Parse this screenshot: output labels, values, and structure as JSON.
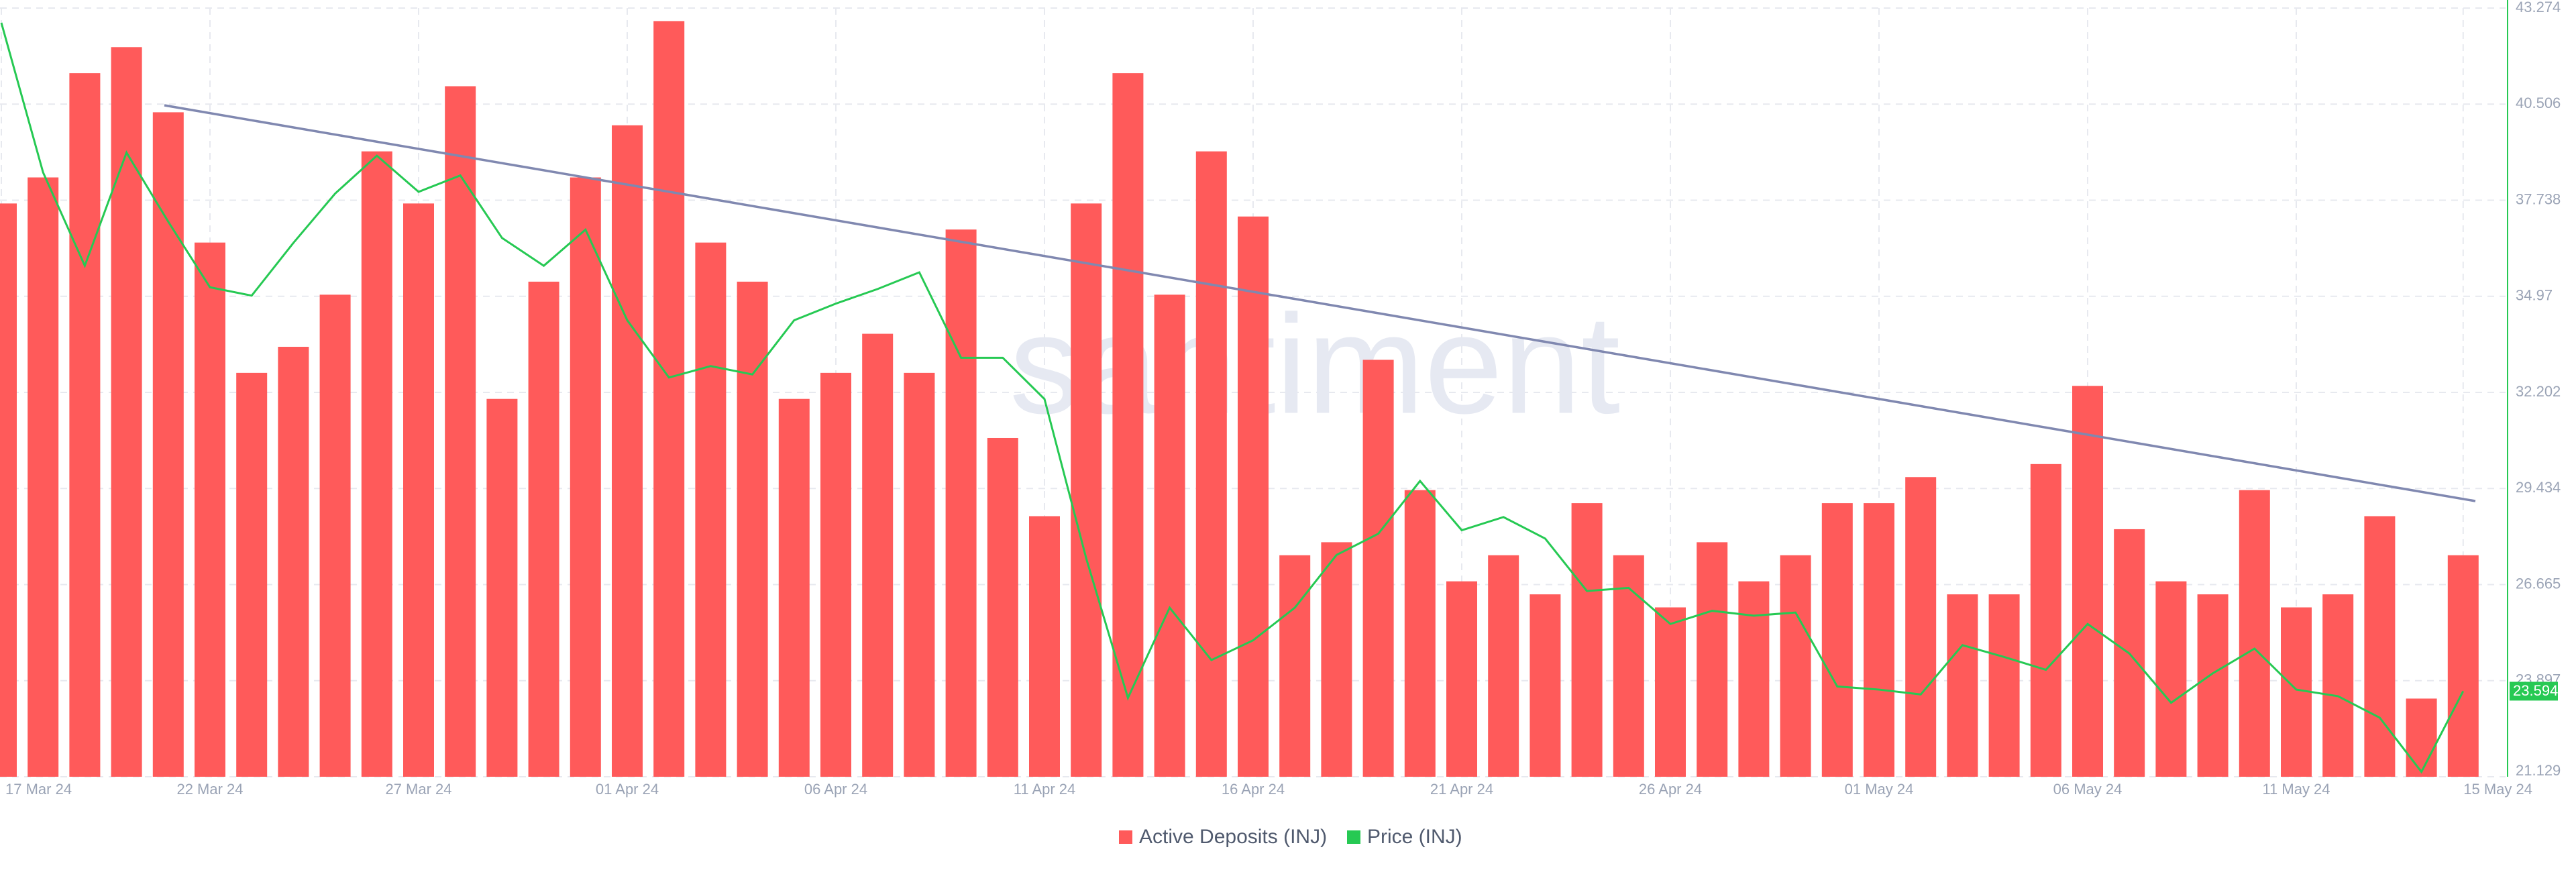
{
  "chart_data": {
    "type": "bar",
    "watermark": "santiment",
    "categories": [
      "17 Mar 24",
      null,
      null,
      null,
      null,
      "22 Mar 24",
      null,
      null,
      null,
      null,
      "27 Mar 24",
      null,
      null,
      null,
      null,
      "01 Apr 24",
      null,
      null,
      null,
      null,
      "06 Apr 24",
      null,
      null,
      null,
      null,
      "11 Apr 24",
      null,
      null,
      null,
      null,
      "16 Apr 24",
      null,
      null,
      null,
      null,
      "21 Apr 24",
      null,
      null,
      null,
      null,
      "26 Apr 24",
      null,
      null,
      null,
      null,
      "01 May 24",
      null,
      null,
      null,
      null,
      "06 May 24",
      null,
      null,
      null,
      null,
      "11 May 24",
      null,
      null,
      null,
      "15 May 24"
    ],
    "series": [
      {
        "name": "Active Deposits (INJ)",
        "color": "#ff5a5a",
        "values": [
          44,
          46,
          54,
          56,
          51,
          41,
          31,
          33,
          37,
          48,
          44,
          53,
          29,
          38,
          46,
          50,
          58,
          41,
          38,
          29,
          31,
          34,
          31,
          42,
          26,
          20,
          44,
          54,
          37,
          48,
          43,
          17,
          18,
          32,
          22,
          15,
          17,
          14,
          21,
          17,
          13,
          18,
          15,
          17,
          21,
          21,
          23,
          14,
          14,
          24,
          30,
          19,
          15,
          14,
          22,
          13,
          14,
          20,
          6,
          17
        ]
      },
      {
        "name": "Price (INJ)",
        "color": "#26c953",
        "type": "line",
        "axis": "y2",
        "values": [
          42.85,
          38.54,
          35.85,
          39.11,
          37.12,
          35.23,
          34.99,
          36.51,
          37.93,
          39.02,
          37.98,
          38.45,
          36.65,
          35.85,
          36.89,
          34.28,
          32.63,
          32.96,
          32.72,
          34.28,
          34.76,
          35.18,
          35.66,
          33.2,
          33.2,
          32.01,
          27.42,
          23.4,
          26.0,
          24.49,
          25.06,
          26.0,
          27.52,
          28.13,
          29.65,
          28.23,
          28.61,
          27.99,
          26.48,
          26.57,
          25.53,
          25.91,
          25.77,
          25.86,
          23.73,
          23.64,
          23.5,
          24.92,
          24.58,
          24.21,
          25.53,
          24.68,
          23.26,
          24.11,
          24.82,
          23.64,
          23.45,
          22.83,
          21.27,
          23.594
        ]
      }
    ],
    "ylim": [
      0,
      59
    ],
    "y2lim": [
      21.129,
      43.274
    ],
    "y2ticks": [
      21.129,
      23.897,
      26.665,
      29.434,
      32.202,
      34.97,
      37.738,
      40.506,
      43.274
    ],
    "grid": true
  }
}
